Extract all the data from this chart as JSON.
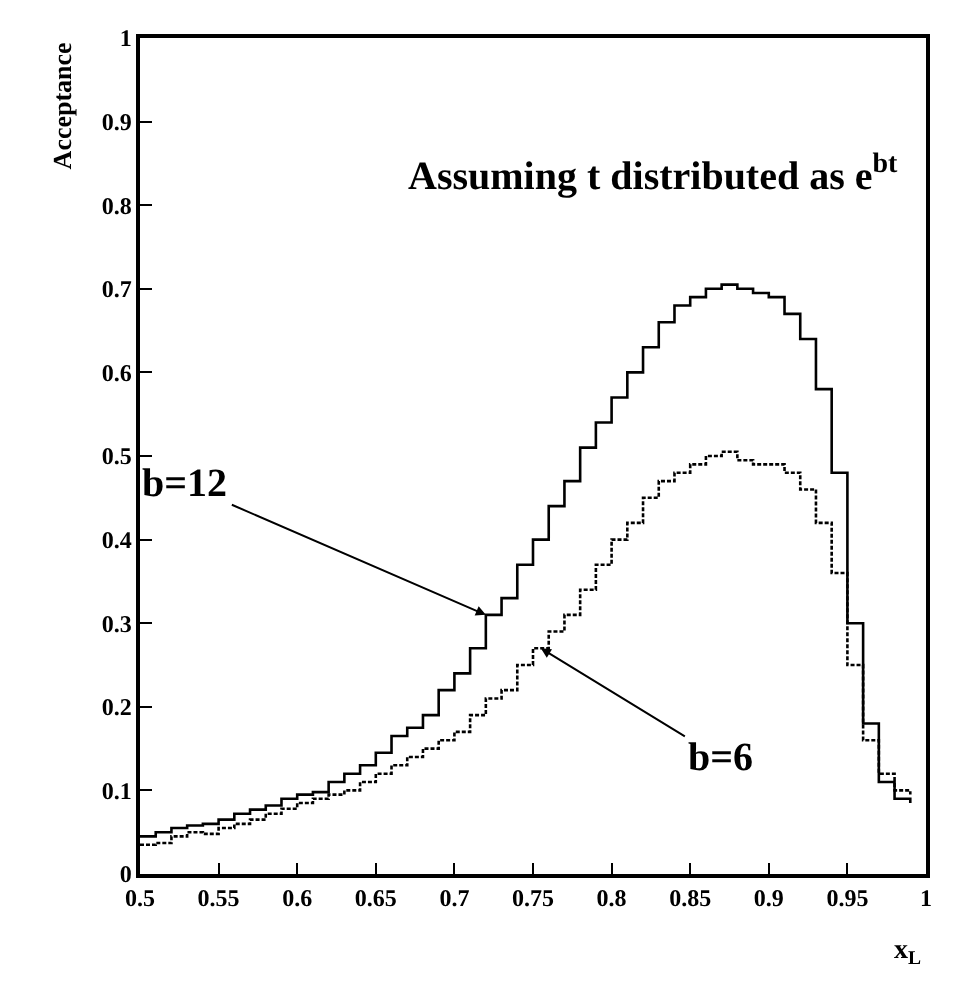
{
  "chart_data": {
    "type": "step",
    "title": "Assuming t distributed as e$^{bt}$",
    "xlabel": "x$_{L}$",
    "ylabel": "Acceptance",
    "x": [
      0.5,
      0.51,
      0.52,
      0.53,
      0.54,
      0.55,
      0.56,
      0.57,
      0.58,
      0.59,
      0.6,
      0.61,
      0.62,
      0.63,
      0.64,
      0.65,
      0.66,
      0.67,
      0.68,
      0.69,
      0.7,
      0.71,
      0.72,
      0.73,
      0.74,
      0.75,
      0.76,
      0.77,
      0.78,
      0.79,
      0.8,
      0.81,
      0.82,
      0.83,
      0.84,
      0.85,
      0.86,
      0.87,
      0.88,
      0.89,
      0.9,
      0.91,
      0.92,
      0.93,
      0.94,
      0.95,
      0.96,
      0.97,
      0.98,
      0.99
    ],
    "series": [
      {
        "color": "#000000",
        "line_style": "solid",
        "values": [
          0.045,
          0.05,
          0.055,
          0.058,
          0.06,
          0.065,
          0.072,
          0.077,
          0.082,
          0.09,
          0.095,
          0.098,
          0.11,
          0.12,
          0.13,
          0.145,
          0.165,
          0.175,
          0.19,
          0.22,
          0.24,
          0.27,
          0.31,
          0.33,
          0.37,
          0.4,
          0.44,
          0.47,
          0.51,
          0.54,
          0.57,
          0.6,
          0.63,
          0.66,
          0.68,
          0.69,
          0.7,
          0.705,
          0.7,
          0.695,
          0.69,
          0.67,
          0.64,
          0.58,
          0.48,
          0.3,
          0.18,
          0.11,
          0.09,
          0.085
        ]
      },
      {
        "color": "#000000",
        "line_style": "dotted",
        "values": [
          0.035,
          0.037,
          0.045,
          0.05,
          0.048,
          0.055,
          0.06,
          0.065,
          0.072,
          0.078,
          0.085,
          0.09,
          0.095,
          0.1,
          0.11,
          0.12,
          0.13,
          0.14,
          0.15,
          0.16,
          0.17,
          0.19,
          0.21,
          0.22,
          0.25,
          0.27,
          0.29,
          0.31,
          0.34,
          0.37,
          0.4,
          0.42,
          0.45,
          0.47,
          0.48,
          0.49,
          0.5,
          0.505,
          0.495,
          0.49,
          0.49,
          0.48,
          0.46,
          0.42,
          0.36,
          0.25,
          0.16,
          0.12,
          0.1,
          0.095
        ]
      }
    ],
    "annotations": [
      {
        "text": "b=12",
        "x": 0.72,
        "y": 0.31
      },
      {
        "text": "b=6",
        "x": 0.755,
        "y": 0.27
      }
    ],
    "xlim": [
      0.5,
      1
    ],
    "xticks": [
      0.5,
      0.55,
      0.6,
      0.65,
      0.7,
      0.75,
      0.8,
      0.85,
      0.9,
      0.95,
      1
    ],
    "ylim": [
      0,
      1
    ],
    "yticks": [
      0,
      0.1,
      0.2,
      0.3,
      0.4,
      0.5,
      0.6,
      0.7,
      0.8,
      0.9,
      1
    ]
  }
}
